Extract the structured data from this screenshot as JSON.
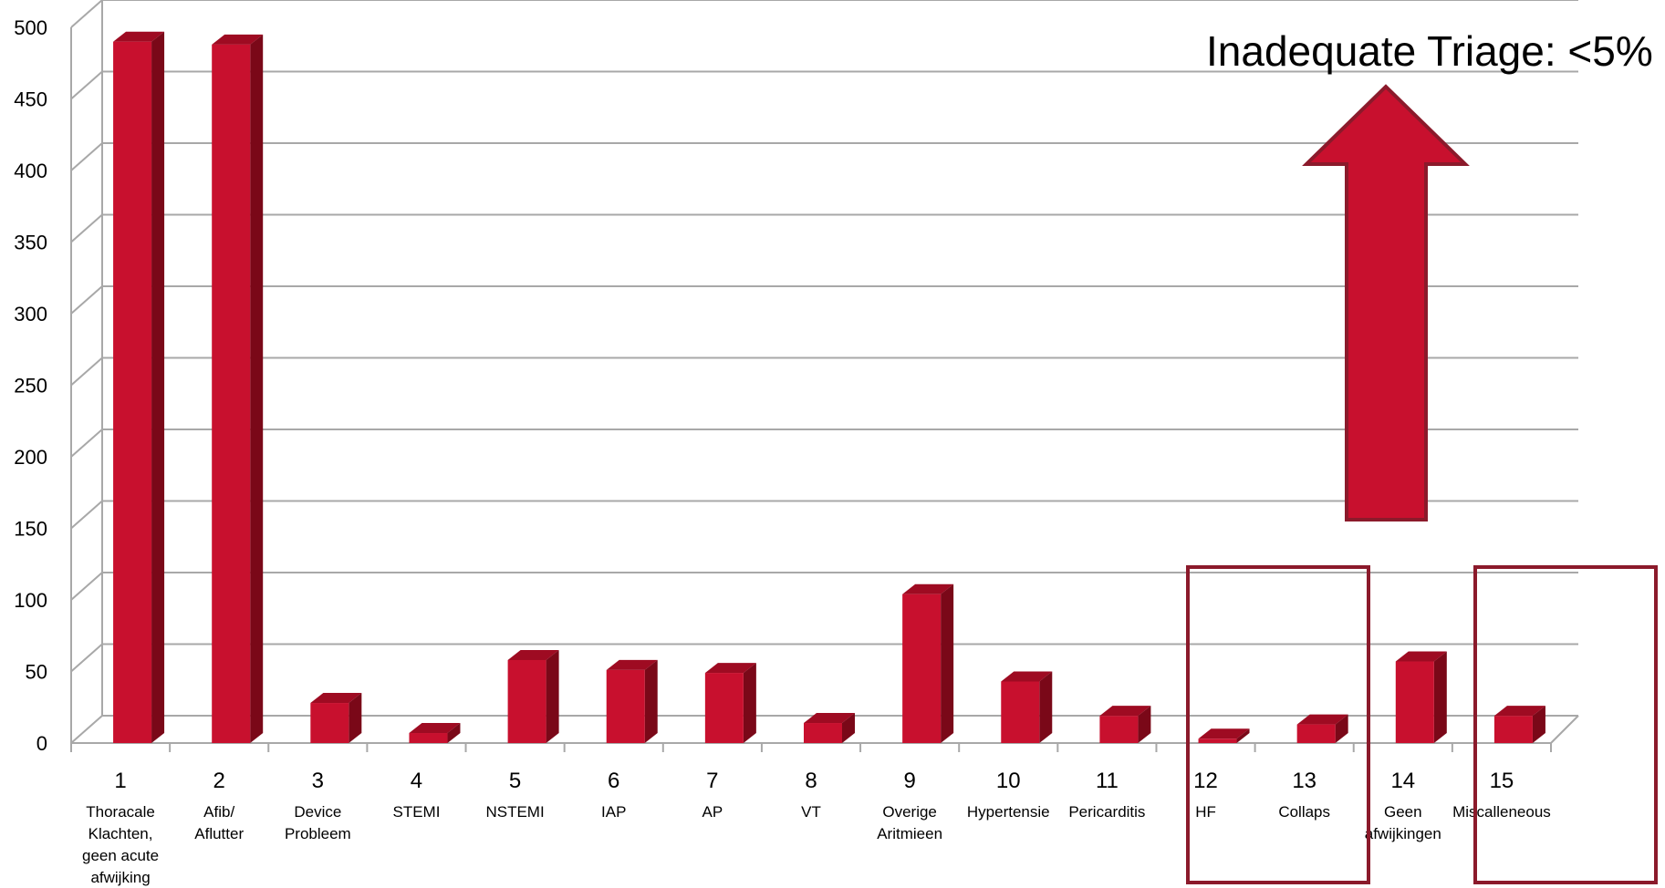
{
  "chart_data": {
    "type": "bar",
    "style": "3d-column",
    "categories": [
      "1",
      "2",
      "3",
      "4",
      "5",
      "6",
      "7",
      "8",
      "9",
      "10",
      "11",
      "12",
      "13",
      "14",
      "15"
    ],
    "category_labels": [
      "Thoracale Klachten, geen acute afwijking",
      "Afib/ Aflutter",
      "Device Probleem",
      "STEMI",
      "NSTEMI",
      "IAP",
      "AP",
      "VT",
      "Overige Aritmieen",
      "Hypertensie",
      "Pericarditis",
      "HF",
      "Collaps",
      "Geen afwijkingen",
      "Miscalleneous"
    ],
    "category_label_lines": [
      [
        "Thoracale",
        "Klachten,",
        "geen acute",
        "afwijking"
      ],
      [
        "Afib/",
        "Aflutter"
      ],
      [
        "Device",
        "Probleem"
      ],
      [
        "STEMI"
      ],
      [
        "NSTEMI"
      ],
      [
        "IAP"
      ],
      [
        "AP"
      ],
      [
        "VT"
      ],
      [
        "Overige",
        "Aritmieen"
      ],
      [
        "Hypertensie"
      ],
      [
        "Pericarditis"
      ],
      [
        "HF"
      ],
      [
        "Collaps"
      ],
      [
        "Geen",
        "afwijkingen"
      ],
      [
        "Miscalleneous"
      ]
    ],
    "values": [
      490,
      488,
      28,
      7,
      58,
      51,
      49,
      14,
      104,
      43,
      19,
      3,
      13,
      57,
      19
    ],
    "ylim": [
      0,
      500
    ],
    "yticks": [
      0,
      50,
      100,
      150,
      200,
      250,
      300,
      350,
      400,
      450,
      500
    ],
    "grid": true,
    "legend": "none",
    "bar_color": "#c8102e",
    "annotation": "Inadequate Triage: <5%",
    "highlighted_categories": [
      "12",
      "13",
      "15"
    ],
    "highlight_color": "#8b1a2b"
  }
}
